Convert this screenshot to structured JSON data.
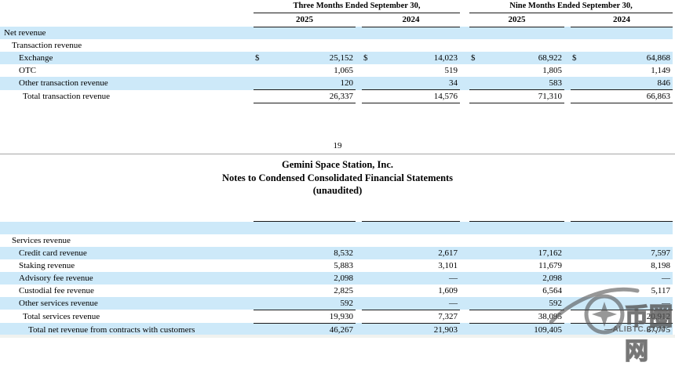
{
  "colors": {
    "row_highlight": "#cde9f9",
    "table_border": "#1a1a1a",
    "page_divider": "#a6a6a6",
    "watermark_gray": "#525252"
  },
  "header": {
    "group1": "Three Months Ended September 30,",
    "group2": "Nine Months Ended September 30,",
    "years": [
      "2025",
      "2024",
      "2025",
      "2024"
    ]
  },
  "page_break": {
    "page_number": "19"
  },
  "titles": {
    "company": "Gemini Space Station, Inc.",
    "doc": "Notes to Condensed Consolidated Financial Statements",
    "unaudited": "(unaudited)"
  },
  "table1": {
    "rows": [
      {
        "label": "Net revenue",
        "indent": 0,
        "shaded": true,
        "values": [
          "",
          "",
          "",
          ""
        ]
      },
      {
        "label": "Transaction revenue",
        "indent": 1,
        "shaded": false,
        "values": [
          "",
          "",
          "",
          ""
        ]
      },
      {
        "label": "Exchange",
        "indent": 2,
        "shaded": true,
        "dollar": true,
        "values": [
          "25,152",
          "14,023",
          "68,922",
          "64,868"
        ]
      },
      {
        "label": "OTC",
        "indent": 2,
        "shaded": false,
        "values": [
          "1,065",
          "519",
          "1,805",
          "1,149"
        ]
      },
      {
        "label": "Other transaction revenue",
        "indent": 2,
        "shaded": true,
        "values": [
          "120",
          "34",
          "583",
          "846"
        ]
      },
      {
        "label": "Total transaction revenue",
        "indent": 3,
        "shaded": false,
        "top": true,
        "bottom": true,
        "values": [
          "26,337",
          "14,576",
          "71,310",
          "66,863"
        ]
      }
    ]
  },
  "table2": {
    "rows": [
      {
        "label": "",
        "indent": 0,
        "shaded": true,
        "top": true,
        "h": 12,
        "values": [
          "",
          "",
          "",
          ""
        ]
      },
      {
        "label": "Services revenue",
        "indent": 1,
        "shaded": false,
        "values": [
          "",
          "",
          "",
          ""
        ]
      },
      {
        "label": "Credit card revenue",
        "indent": 2,
        "shaded": true,
        "values": [
          "8,532",
          "2,617",
          "17,162",
          "7,597"
        ]
      },
      {
        "label": "Staking revenue",
        "indent": 2,
        "shaded": false,
        "values": [
          "5,883",
          "3,101",
          "11,679",
          "8,198"
        ]
      },
      {
        "label": "Advisory fee revenue",
        "indent": 2,
        "shaded": true,
        "values": [
          "2,098",
          "—",
          "2,098",
          "—"
        ]
      },
      {
        "label": "Custodial fee revenue",
        "indent": 2,
        "shaded": false,
        "values": [
          "2,825",
          "1,609",
          "6,564",
          "5,117"
        ]
      },
      {
        "label": "Other services revenue",
        "indent": 2,
        "shaded": true,
        "values": [
          "592",
          "—",
          "592",
          "—"
        ]
      },
      {
        "label": "Total services revenue",
        "indent": 3,
        "shaded": false,
        "top": true,
        "values": [
          "19,930",
          "7,327",
          "38,095",
          "20,912"
        ]
      },
      {
        "label": "Total net revenue from contracts with customers",
        "indent": 4,
        "shaded": true,
        "top": true,
        "bottom": true,
        "values": [
          "46,267",
          "21,903",
          "109,405",
          "87,775"
        ]
      }
    ]
  },
  "watermark": {
    "cn": "币圈网",
    "site": "—ALIBTC.COM"
  }
}
